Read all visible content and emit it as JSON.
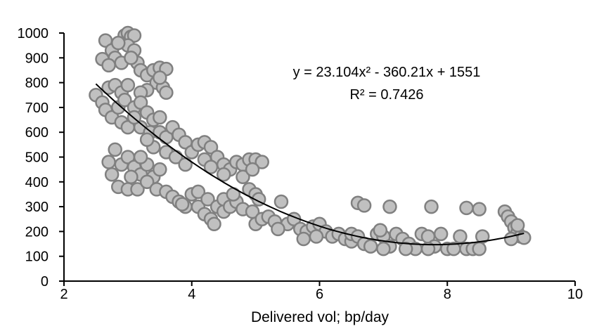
{
  "chart_data": {
    "type": "scatter",
    "title": "",
    "xlabel": "Delivered vol; bp/day",
    "ylabel": "",
    "xlim": [
      2,
      10
    ],
    "ylim": [
      0,
      1000
    ],
    "xticks": [
      2,
      4,
      6,
      8,
      10
    ],
    "yticks": [
      0,
      100,
      200,
      300,
      400,
      500,
      600,
      700,
      800,
      900,
      1000
    ],
    "grid": false,
    "legend": "none",
    "marker_fill": "#c0c0c0",
    "marker_stroke": "#808080",
    "trendline": {
      "type": "polynomial",
      "coefficients": [
        23.104,
        -360.21,
        1551
      ],
      "x_range": [
        2.5,
        9.2
      ],
      "color": "#000000",
      "equation_label": "y = 23.104x² - 360.21x + 1551",
      "r2_label": "R² = 0.7426"
    },
    "points": [
      [
        2.65,
        970
      ],
      [
        2.75,
        930
      ],
      [
        2.8,
        900
      ],
      [
        2.6,
        895
      ],
      [
        2.9,
        880
      ],
      [
        2.95,
        990
      ],
      [
        3.0,
        1000
      ],
      [
        3.05,
        985
      ],
      [
        3.1,
        990
      ],
      [
        3.0,
        950
      ],
      [
        2.85,
        960
      ],
      [
        3.1,
        930
      ],
      [
        3.15,
        880
      ],
      [
        3.2,
        850
      ],
      [
        3.05,
        900
      ],
      [
        2.7,
        870
      ],
      [
        3.3,
        830
      ],
      [
        3.4,
        850
      ],
      [
        3.5,
        860
      ],
      [
        3.6,
        855
      ],
      [
        3.45,
        800
      ],
      [
        3.55,
        780
      ],
      [
        3.6,
        760
      ],
      [
        3.3,
        770
      ],
      [
        3.2,
        760
      ],
      [
        3.5,
        820
      ],
      [
        2.5,
        750
      ],
      [
        2.6,
        720
      ],
      [
        2.7,
        780
      ],
      [
        2.8,
        790
      ],
      [
        2.9,
        760
      ],
      [
        3.0,
        790
      ],
      [
        2.65,
        690
      ],
      [
        2.75,
        660
      ],
      [
        2.85,
        700
      ],
      [
        2.95,
        730
      ],
      [
        3.1,
        700
      ],
      [
        3.2,
        720
      ],
      [
        3.3,
        680
      ],
      [
        3.4,
        650
      ],
      [
        2.9,
        640
      ],
      [
        3.0,
        620
      ],
      [
        3.2,
        620
      ],
      [
        3.35,
        600
      ],
      [
        3.5,
        660
      ],
      [
        3.1,
        660
      ],
      [
        3.5,
        600
      ],
      [
        3.6,
        580
      ],
      [
        3.7,
        620
      ],
      [
        3.8,
        590
      ],
      [
        3.9,
        560
      ],
      [
        3.4,
        540
      ],
      [
        3.6,
        520
      ],
      [
        3.75,
        500
      ],
      [
        3.9,
        470
      ],
      [
        3.3,
        570
      ],
      [
        2.8,
        530
      ],
      [
        2.7,
        480
      ],
      [
        2.75,
        430
      ],
      [
        2.9,
        470
      ],
      [
        3.0,
        500
      ],
      [
        3.1,
        460
      ],
      [
        3.2,
        430
      ],
      [
        3.3,
        470
      ],
      [
        3.4,
        420
      ],
      [
        3.5,
        450
      ],
      [
        2.85,
        380
      ],
      [
        3.0,
        370
      ],
      [
        3.15,
        370
      ],
      [
        3.3,
        400
      ],
      [
        3.45,
        370
      ],
      [
        3.6,
        360
      ],
      [
        3.2,
        500
      ],
      [
        3.05,
        420
      ],
      [
        3.7,
        340
      ],
      [
        3.8,
        320
      ],
      [
        3.9,
        300
      ],
      [
        4.0,
        350
      ],
      [
        4.1,
        300
      ],
      [
        4.2,
        270
      ],
      [
        4.3,
        250
      ],
      [
        4.35,
        230
      ],
      [
        4.1,
        360
      ],
      [
        4.25,
        330
      ],
      [
        4.4,
        300
      ],
      [
        4.5,
        280
      ],
      [
        3.85,
        310
      ],
      [
        4.0,
        520
      ],
      [
        4.1,
        550
      ],
      [
        4.2,
        560
      ],
      [
        4.3,
        540
      ],
      [
        4.4,
        500
      ],
      [
        4.5,
        470
      ],
      [
        4.6,
        450
      ],
      [
        4.7,
        480
      ],
      [
        4.8,
        470
      ],
      [
        4.9,
        490
      ],
      [
        5.0,
        490
      ],
      [
        5.1,
        480
      ],
      [
        4.2,
        490
      ],
      [
        4.3,
        460
      ],
      [
        4.5,
        430
      ],
      [
        4.8,
        420
      ],
      [
        4.95,
        450
      ],
      [
        4.5,
        330
      ],
      [
        4.6,
        300
      ],
      [
        4.7,
        320
      ],
      [
        4.8,
        290
      ],
      [
        4.9,
        370
      ],
      [
        5.0,
        350
      ],
      [
        5.05,
        330
      ],
      [
        4.95,
        280
      ],
      [
        4.65,
        350
      ],
      [
        5.0,
        230
      ],
      [
        5.1,
        250
      ],
      [
        5.2,
        260
      ],
      [
        5.3,
        240
      ],
      [
        5.4,
        320
      ],
      [
        5.5,
        230
      ],
      [
        5.6,
        250
      ],
      [
        5.7,
        210
      ],
      [
        5.8,
        200
      ],
      [
        5.9,
        220
      ],
      [
        6.0,
        230
      ],
      [
        6.1,
        200
      ],
      [
        6.2,
        180
      ],
      [
        6.3,
        190
      ],
      [
        6.4,
        170
      ],
      [
        5.75,
        170
      ],
      [
        5.95,
        180
      ],
      [
        6.5,
        160
      ],
      [
        5.35,
        210
      ],
      [
        6.5,
        190
      ],
      [
        6.6,
        180
      ],
      [
        6.7,
        150
      ],
      [
        6.8,
        140
      ],
      [
        6.9,
        190
      ],
      [
        7.0,
        180
      ],
      [
        7.1,
        140
      ],
      [
        7.2,
        190
      ],
      [
        7.3,
        170
      ],
      [
        7.4,
        150
      ],
      [
        7.5,
        130
      ],
      [
        7.6,
        190
      ],
      [
        7.7,
        180
      ],
      [
        7.8,
        140
      ],
      [
        7.9,
        190
      ],
      [
        8.0,
        130
      ],
      [
        8.1,
        130
      ],
      [
        8.2,
        180
      ],
      [
        8.3,
        130
      ],
      [
        8.4,
        130
      ],
      [
        8.5,
        130
      ],
      [
        8.55,
        180
      ],
      [
        7.0,
        130
      ],
      [
        7.35,
        130
      ],
      [
        7.7,
        130
      ],
      [
        6.95,
        205
      ],
      [
        6.6,
        315
      ],
      [
        6.7,
        305
      ],
      [
        7.1,
        300
      ],
      [
        7.75,
        300
      ],
      [
        8.3,
        295
      ],
      [
        8.5,
        290
      ],
      [
        8.9,
        280
      ],
      [
        8.95,
        260
      ],
      [
        9.0,
        240
      ],
      [
        9.05,
        215
      ],
      [
        9.1,
        195
      ],
      [
        9.15,
        180
      ],
      [
        9.2,
        175
      ],
      [
        9.0,
        170
      ],
      [
        9.1,
        225
      ]
    ]
  }
}
